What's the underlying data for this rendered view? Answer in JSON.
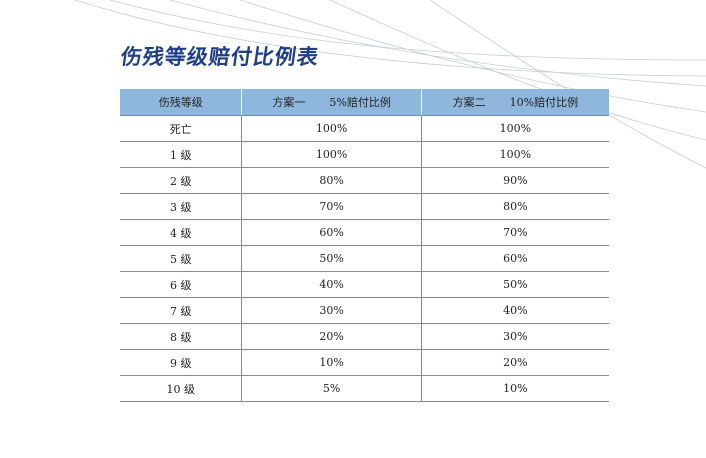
{
  "title": "伤残等级赔付比例表",
  "table": {
    "headers": [
      {
        "left": "伤残等级",
        "right": ""
      },
      {
        "left": "方案一",
        "right": "5%赔付比例"
      },
      {
        "left": "方案二",
        "right": "10%赔付比例"
      }
    ],
    "rows": [
      {
        "level": "死亡",
        "plan1": "100%",
        "plan2": "100%"
      },
      {
        "level": "1 级",
        "plan1": "100%",
        "plan2": "100%"
      },
      {
        "level": "2 级",
        "plan1": "80%",
        "plan2": "90%"
      },
      {
        "level": "3 级",
        "plan1": "70%",
        "plan2": "80%"
      },
      {
        "level": "4 级",
        "plan1": "60%",
        "plan2": "70%"
      },
      {
        "level": "5 级",
        "plan1": "50%",
        "plan2": "60%"
      },
      {
        "level": "6 级",
        "plan1": "40%",
        "plan2": "50%"
      },
      {
        "level": "7 级",
        "plan1": "30%",
        "plan2": "40%"
      },
      {
        "level": "8 级",
        "plan1": "20%",
        "plan2": "30%"
      },
      {
        "level": "9 级",
        "plan1": "10%",
        "plan2": "20%"
      },
      {
        "level": "10 级",
        "plan1": "5%",
        "plan2": "10%"
      }
    ]
  },
  "colors": {
    "title": "#1f3f86",
    "header_bg": "#8fb6dc",
    "rule": "#8a8a8a",
    "swoosh": "#c9cdd3"
  }
}
